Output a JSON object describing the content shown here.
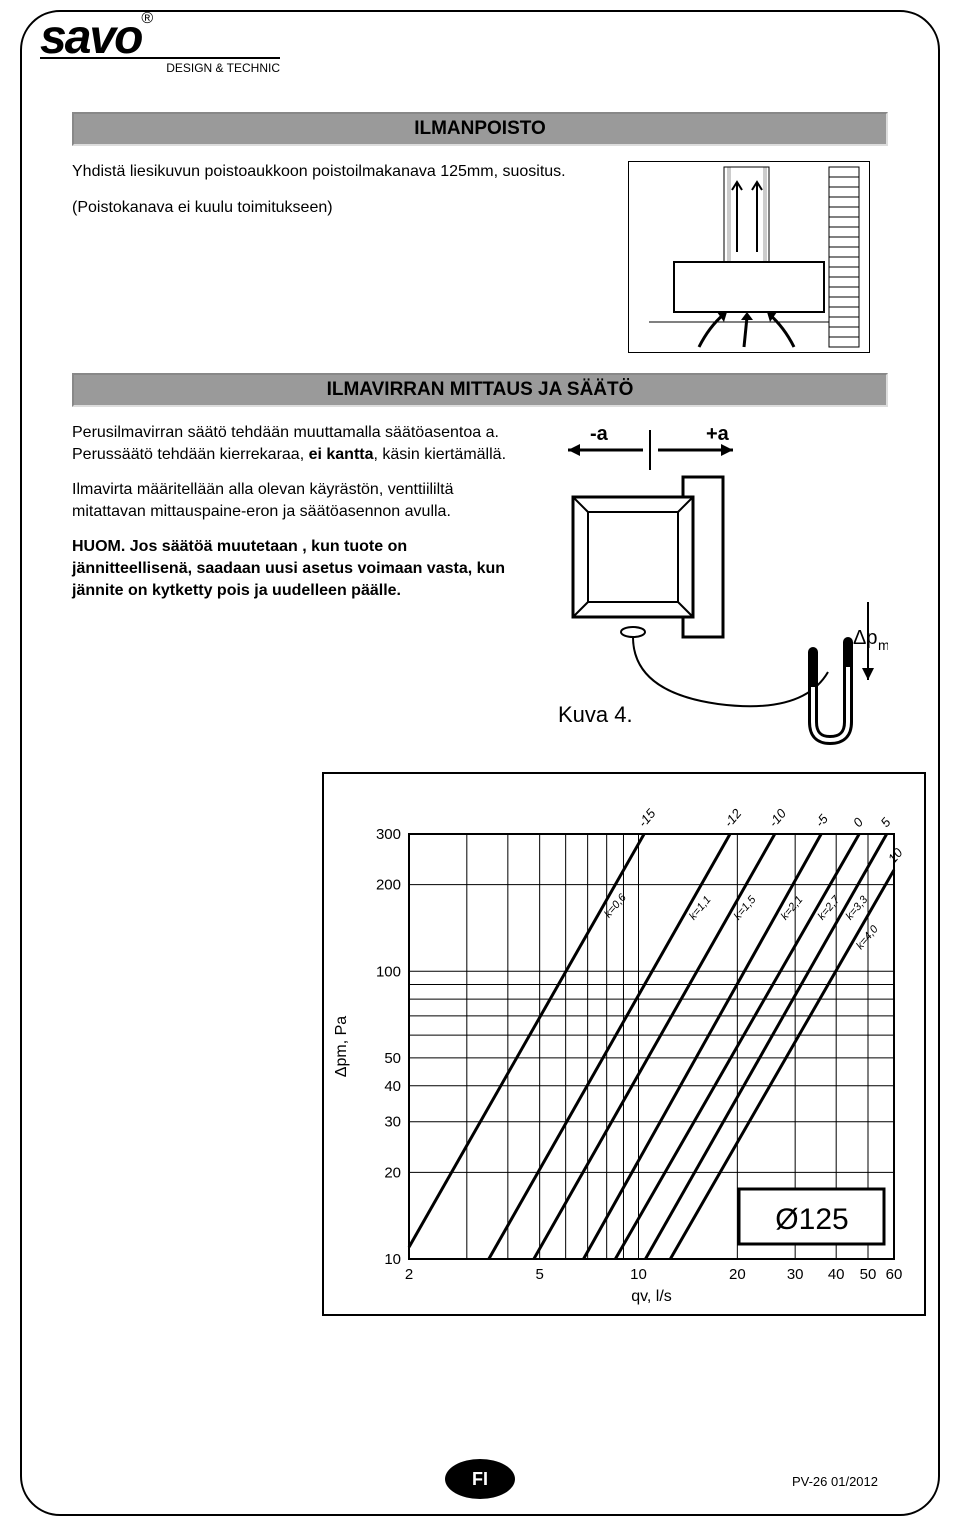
{
  "logo": {
    "brand": "savo",
    "reg": "®",
    "tagline": "DESIGN & TECHNIC"
  },
  "section1": {
    "title": "ILMANPOISTO",
    "p1": "Yhdistä liesikuvun poistoaukkoon poistoilmakanava 125mm, suositus.",
    "p2": "(Poistokanava ei kuulu toimitukseen)"
  },
  "section2": {
    "title": "ILMAVIRRAN MITTAUS JA SÄÄTÖ",
    "p1": "Perusilmavirran säätö tehdään muuttamalla säätöasentoa a. Perussäätö tehdään kierrekaraa, ",
    "p1_bold": "ei kantta",
    "p1_end": ", käsin kiertämällä.",
    "p2": "Ilmavirta määritellään alla olevan käyrästön, venttiililtä mitattavan mittauspaine-eron ja säätöasennon avulla.",
    "p3_bold": "HUOM. Jos säätöä muutetaan , kun tuote on jännitteellisenä, saadaan uusi asetus voimaan vasta, kun jännite on kytketty pois ja uudelleen päälle."
  },
  "diagram2": {
    "minus_a": "-a",
    "plus_a": "+a",
    "caption": "Kuva 4.",
    "dp": "Δp",
    "dp_sub": "m"
  },
  "chart": {
    "type": "log-log-line",
    "background": "#ffffff",
    "grid_color": "#000000",
    "line_color": "#000000",
    "line_width": 3,
    "y_ticks": [
      10,
      20,
      30,
      40,
      50,
      100,
      200,
      300
    ],
    "y_labels": [
      "10",
      "20",
      "30",
      "40",
      "50",
      "100",
      "200",
      "300"
    ],
    "x_ticks": [
      2,
      5,
      10,
      20,
      30,
      40,
      50,
      60
    ],
    "x_labels": [
      "2",
      "5",
      "10",
      "20",
      "30",
      "40",
      "50",
      "60"
    ],
    "y_axis_label": "Δpm, Pa",
    "x_axis_label": "qv, l/s",
    "top_labels": [
      "-15",
      "-12",
      "-10",
      "-5",
      "0",
      "5",
      "10"
    ],
    "top_label_fontsize": 13,
    "k_labels": [
      "k=0,6",
      "k=1,1",
      "k=1,5",
      "k=2,1",
      "k=2,7",
      "k=3,3",
      "k=4,0"
    ],
    "k_label_fontsize": 11,
    "k_label_rotate": -50,
    "series": [
      {
        "x1": 2.0,
        "y1": 11,
        "x2": 10.4,
        "y2": 300
      },
      {
        "x1": 3.5,
        "y1": 10,
        "x2": 19,
        "y2": 300
      },
      {
        "x1": 4.8,
        "y1": 10,
        "x2": 26,
        "y2": 300
      },
      {
        "x1": 6.8,
        "y1": 10,
        "x2": 36,
        "y2": 300
      },
      {
        "x1": 8.5,
        "y1": 10,
        "x2": 47,
        "y2": 300
      },
      {
        "x1": 10.5,
        "y1": 10,
        "x2": 57,
        "y2": 300
      },
      {
        "x1": 12.5,
        "y1": 10,
        "x2": 60,
        "y2": 225
      }
    ],
    "badge": "Ø125",
    "badge_fontsize": 30
  },
  "footer": {
    "lang": "FI",
    "code": "PV-26  01/2012"
  }
}
